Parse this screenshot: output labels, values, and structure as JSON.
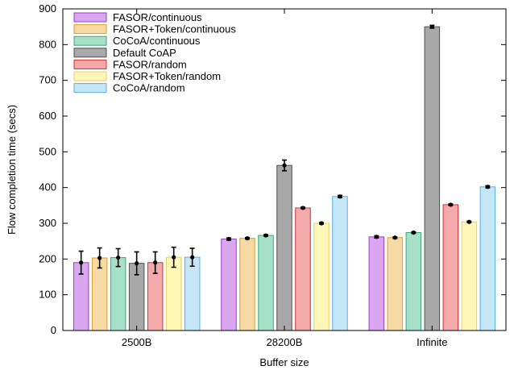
{
  "chart_data": {
    "type": "bar",
    "title": "",
    "xlabel": "Buffer size",
    "ylabel": "Flow completion time (secs)",
    "ylim": [
      0,
      900
    ],
    "yticks": [
      0,
      100,
      200,
      300,
      400,
      500,
      600,
      700,
      800,
      900
    ],
    "categories": [
      "2500B",
      "28200B",
      "Infinite"
    ],
    "grid": false,
    "legend_position": "top-left",
    "series": [
      {
        "name": "FASOR/continuous",
        "color": "#d9a6ef",
        "stroke": "#9a3fc7",
        "values": [
          190,
          256,
          262
        ],
        "err": [
          32,
          3,
          3
        ]
      },
      {
        "name": "FASOR+Token/continuous",
        "color": "#f6d9a4",
        "stroke": "#d9a030",
        "values": [
          203,
          258,
          260
        ],
        "err": [
          28,
          2,
          2
        ]
      },
      {
        "name": "CoCoA/continuous",
        "color": "#a7e0c8",
        "stroke": "#3aa678",
        "values": [
          204,
          266,
          274
        ],
        "err": [
          25,
          2,
          2
        ]
      },
      {
        "name": "Default CoAP",
        "color": "#a8a8a8",
        "stroke": "#505050",
        "values": [
          188,
          462,
          850
        ],
        "err": [
          32,
          15,
          4
        ]
      },
      {
        "name": "FASOR/random",
        "color": "#f4aaaa",
        "stroke": "#d42f2f",
        "values": [
          190,
          343,
          352
        ],
        "err": [
          30,
          2,
          2
        ]
      },
      {
        "name": "FASOR+Token/random",
        "color": "#fff6b8",
        "stroke": "#e8d060",
        "values": [
          205,
          300,
          304
        ],
        "err": [
          28,
          2,
          2
        ]
      },
      {
        "name": "CoCoA/random",
        "color": "#c4e6f6",
        "stroke": "#5aaedc",
        "values": [
          205,
          375,
          402
        ],
        "err": [
          25,
          3,
          3
        ]
      }
    ]
  }
}
